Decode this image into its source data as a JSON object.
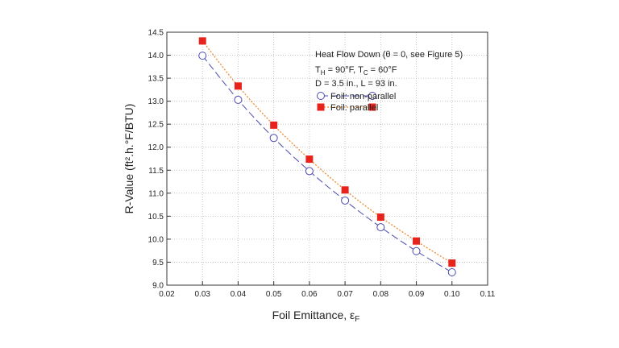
{
  "chart_data": {
    "type": "line",
    "x": [
      0.03,
      0.04,
      0.05,
      0.06,
      0.07,
      0.08,
      0.09,
      0.1
    ],
    "series": [
      {
        "name": "Foil: non-parallel",
        "values": [
          13.99,
          13.03,
          12.2,
          11.48,
          10.84,
          10.26,
          9.74,
          9.28
        ],
        "color": "#4a4ab0",
        "marker": "open-circle",
        "line": "long-dash"
      },
      {
        "name": "Foil: parallel",
        "values": [
          14.31,
          13.33,
          12.48,
          11.74,
          11.07,
          10.48,
          9.96,
          9.48
        ],
        "color": "#e8231c",
        "marker": "filled-square",
        "line": "dotted"
      }
    ],
    "xlabel_main": "Foil Emittance, ε",
    "xlabel_sub": "F",
    "ylabel": "R-Value (ft².h.°F/BTU)",
    "xlim": [
      0.02,
      0.11
    ],
    "ylim": [
      9.0,
      14.5
    ],
    "xticks": [
      "0.02",
      "0.03",
      "0.04",
      "0.05",
      "0.06",
      "0.07",
      "0.08",
      "0.09",
      "0.10",
      "0.11"
    ],
    "yticks": [
      "9.0",
      "9.5",
      "10.0",
      "10.5",
      "11.0",
      "11.5",
      "12.0",
      "12.5",
      "13.0",
      "13.5",
      "14.0",
      "14.5"
    ],
    "grid": true,
    "legend_position": "top-right",
    "annotations": {
      "line1": "Heat Flow Down (θ = 0, see Figure 5)",
      "line2": "T",
      "line2_sub1": "H",
      "line2_mid": " = 90°F, T",
      "line2_sub2": "C",
      "line2_end": " = 60°F",
      "line3": "D = 3.5 in., L = 93 in."
    }
  }
}
